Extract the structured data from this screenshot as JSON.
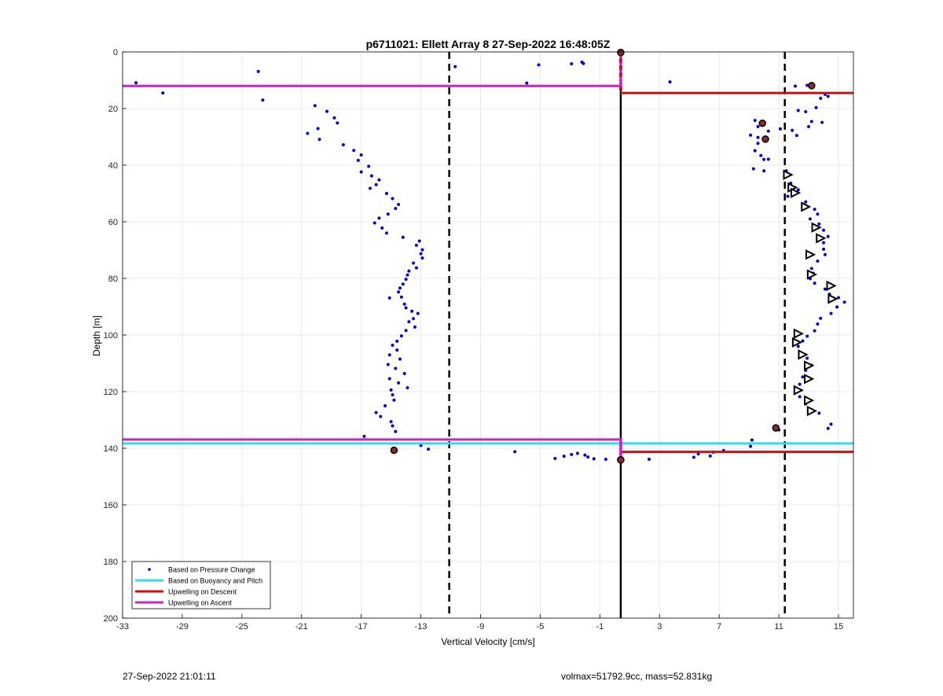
{
  "chart_data": {
    "type": "scatter",
    "title": "p6711021: Ellett Array 8 27-Sep-2022 16:48:05Z",
    "xlabel": "Vertical Velocity [cm/s]",
    "ylabel": "Depth [m]",
    "xlim": [
      -33,
      16
    ],
    "ylim": [
      0,
      200
    ],
    "y_reversed": true,
    "grid": true,
    "legend_position": "bottom-left",
    "xticks": [
      -33,
      -29,
      -25,
      -21,
      -17,
      -13,
      -9,
      -5,
      -1,
      3,
      7,
      11,
      15
    ],
    "yticks": [
      0,
      20,
      40,
      60,
      80,
      100,
      120,
      140,
      160,
      180,
      200
    ],
    "colors": {
      "pressure": "#0000cc",
      "buoyancy": "#33dde6",
      "descent": "#cc1111",
      "ascent": "#cc22cc",
      "reference": "#000000"
    },
    "legend": [
      {
        "label": "Based on Pressure Change",
        "style": "dot",
        "color": "#0000cc"
      },
      {
        "label": "Based on Buoyancy and Pitch",
        "style": "line",
        "color": "#33dde6"
      },
      {
        "label": "Upwelling on Descent",
        "style": "line",
        "color": "#cc1111"
      },
      {
        "label": "Upwelling on Ascent",
        "style": "line",
        "color": "#cc22cc"
      }
    ],
    "vertical_lines": [
      {
        "x": -11.1,
        "style": "dashed"
      },
      {
        "x": 0.4,
        "style": "solid"
      },
      {
        "x": 11.4,
        "style": "dashed"
      }
    ],
    "upwelling_ascent": [
      {
        "depth": 12.0,
        "x_from": -33,
        "x_to": 0.4
      },
      {
        "depth": 136.9,
        "x_from": -33,
        "x_to": 0.4
      }
    ],
    "upwelling_descent": [
      {
        "depth": 14.5,
        "x_from": 0.4,
        "x_to": 16
      },
      {
        "depth": 141.3,
        "x_from": 0.4,
        "x_to": 16
      }
    ],
    "buoyancy_line": {
      "depth": 138.3,
      "x_from": -33,
      "x_to": 16
    },
    "pressure_points": [
      [
        -32.1,
        10.9
      ],
      [
        -30.3,
        14.5
      ],
      [
        -23.9,
        6.9
      ],
      [
        -23.6,
        17.0
      ],
      [
        -20.1,
        19.0
      ],
      [
        -19.3,
        21.0
      ],
      [
        -18.8,
        23.3
      ],
      [
        -18.6,
        25.1
      ],
      [
        -19.9,
        27.1
      ],
      [
        -20.6,
        28.8
      ],
      [
        -19.8,
        30.9
      ],
      [
        -18.2,
        32.8
      ],
      [
        -17.5,
        34.8
      ],
      [
        -17.0,
        36.4
      ],
      [
        -17.2,
        38.3
      ],
      [
        -16.5,
        40.4
      ],
      [
        -17.0,
        42.4
      ],
      [
        -16.3,
        43.8
      ],
      [
        -15.8,
        45.2
      ],
      [
        -16.0,
        46.9
      ],
      [
        -16.4,
        48.2
      ],
      [
        -15.3,
        50.0
      ],
      [
        -14.9,
        51.8
      ],
      [
        -14.5,
        53.9
      ],
      [
        -14.7,
        55.3
      ],
      [
        -15.2,
        57.3
      ],
      [
        -15.8,
        58.7
      ],
      [
        -16.1,
        60.4
      ],
      [
        -15.6,
        62.2
      ],
      [
        -15.3,
        64.0
      ],
      [
        -14.2,
        65.5
      ],
      [
        -13.1,
        66.8
      ],
      [
        -13.3,
        68.3
      ],
      [
        -12.9,
        69.9
      ],
      [
        -13.0,
        71.3
      ],
      [
        -12.9,
        72.8
      ],
      [
        -13.5,
        74.6
      ],
      [
        -13.3,
        76.3
      ],
      [
        -13.8,
        77.4
      ],
      [
        -13.9,
        78.8
      ],
      [
        -14.0,
        80.3
      ],
      [
        -14.2,
        82.0
      ],
      [
        -14.4,
        83.4
      ],
      [
        -14.5,
        84.8
      ],
      [
        -15.1,
        86.9
      ],
      [
        -14.3,
        86.6
      ],
      [
        -14.1,
        89.1
      ],
      [
        -14.0,
        90.4
      ],
      [
        -13.6,
        91.6
      ],
      [
        -13.2,
        92.4
      ],
      [
        -13.5,
        94.2
      ],
      [
        -13.8,
        95.3
      ],
      [
        -13.4,
        97.2
      ],
      [
        -14.0,
        98.4
      ],
      [
        -14.3,
        100.3
      ],
      [
        -14.6,
        102.2
      ],
      [
        -14.9,
        103.6
      ],
      [
        -14.6,
        105.3
      ],
      [
        -15.1,
        107.0
      ],
      [
        -14.4,
        108.5
      ],
      [
        -15.2,
        110.4
      ],
      [
        -14.7,
        111.8
      ],
      [
        -14.1,
        113.6
      ],
      [
        -15.1,
        115.4
      ],
      [
        -14.5,
        116.9
      ],
      [
        -13.9,
        118.6
      ],
      [
        -15.0,
        119.4
      ],
      [
        -14.9,
        121.1
      ],
      [
        -14.8,
        123.0
      ],
      [
        -15.4,
        125.0
      ],
      [
        -16.0,
        127.4
      ],
      [
        -15.7,
        128.8
      ],
      [
        -15.0,
        130.6
      ],
      [
        -14.9,
        132.1
      ],
      [
        -14.7,
        134.1
      ],
      [
        -16.8,
        135.8
      ],
      [
        -13.0,
        139.0
      ],
      [
        -12.5,
        140.3
      ],
      [
        -6.7,
        141.2
      ],
      [
        -4.0,
        143.6
      ],
      [
        -3.4,
        142.8
      ],
      [
        -2.9,
        142.2
      ],
      [
        -2.5,
        141.8
      ],
      [
        -2.0,
        142.4
      ],
      [
        -1.8,
        143.1
      ],
      [
        -1.4,
        143.7
      ],
      [
        -0.6,
        143.9
      ],
      [
        2.3,
        143.9
      ],
      [
        5.3,
        143.2
      ],
      [
        5.6,
        142.0
      ],
      [
        6.6,
        141.4
      ],
      [
        7.3,
        140.8
      ],
      [
        6.4,
        142.7
      ],
      [
        9.2,
        137.1
      ],
      [
        9.1,
        139.3
      ],
      [
        11.0,
        133.5
      ],
      [
        14.5,
        131.5
      ],
      [
        14.3,
        133.0
      ],
      [
        -10.7,
        5.2
      ],
      [
        -5.1,
        4.6
      ],
      [
        -2.9,
        4.2
      ],
      [
        -2.2,
        3.6
      ],
      [
        -2.1,
        4.1
      ],
      [
        -5.9,
        11.0
      ],
      [
        3.7,
        10.6
      ],
      [
        12.1,
        12.1
      ],
      [
        12.9,
        11.8
      ],
      [
        14.1,
        15.0
      ],
      [
        13.8,
        16.4
      ],
      [
        14.3,
        15.7
      ],
      [
        13.5,
        19.7
      ],
      [
        12.8,
        21.1
      ],
      [
        12.3,
        20.7
      ],
      [
        13.2,
        24.6
      ],
      [
        13.9,
        24.9
      ],
      [
        13.0,
        26.4
      ],
      [
        11.1,
        27.2
      ],
      [
        11.9,
        27.7
      ],
      [
        12.2,
        29.5
      ],
      [
        10.3,
        28.0
      ],
      [
        9.1,
        29.4
      ],
      [
        9.4,
        24.2
      ],
      [
        9.6,
        26.4
      ],
      [
        9.6,
        30.2
      ],
      [
        9.6,
        32.3
      ],
      [
        9.4,
        34.9
      ],
      [
        9.8,
        36.6
      ],
      [
        10.0,
        38.0
      ],
      [
        9.3,
        41.3
      ],
      [
        10.0,
        42.0
      ],
      [
        10.3,
        37.9
      ],
      [
        11.5,
        42.0
      ],
      [
        11.8,
        46.4
      ],
      [
        12.3,
        48.7
      ],
      [
        11.6,
        51.0
      ],
      [
        12.8,
        53.0
      ],
      [
        13.4,
        55.6
      ],
      [
        13.6,
        57.3
      ],
      [
        13.1,
        59.0
      ],
      [
        13.7,
        60.8
      ],
      [
        14.0,
        63.0
      ],
      [
        14.3,
        65.2
      ],
      [
        14.0,
        67.4
      ],
      [
        14.0,
        69.7
      ],
      [
        14.1,
        71.6
      ],
      [
        13.6,
        73.9
      ],
      [
        13.2,
        76.5
      ],
      [
        13.3,
        78.2
      ],
      [
        13.1,
        80.1
      ],
      [
        13.4,
        81.7
      ],
      [
        14.1,
        83.8
      ],
      [
        14.4,
        85.6
      ],
      [
        15.0,
        86.8
      ],
      [
        15.4,
        88.4
      ],
      [
        14.9,
        90.1
      ],
      [
        14.5,
        92.4
      ],
      [
        13.8,
        94.1
      ],
      [
        13.6,
        96.1
      ],
      [
        13.4,
        98.5
      ],
      [
        12.9,
        100.4
      ],
      [
        12.6,
        102.1
      ],
      [
        12.3,
        104.0
      ],
      [
        12.4,
        106.3
      ],
      [
        12.9,
        108.2
      ],
      [
        13.2,
        110.7
      ],
      [
        12.8,
        112.5
      ],
      [
        12.6,
        114.8
      ],
      [
        12.4,
        117.4
      ],
      [
        12.1,
        119.9
      ],
      [
        12.4,
        121.8
      ],
      [
        12.8,
        124.3
      ],
      [
        13.2,
        126.4
      ],
      [
        13.7,
        127.6
      ]
    ],
    "ascent_points": [
      [
        0.4,
        0.4
      ],
      [
        0.4,
        1.2
      ],
      [
        0.4,
        2.5
      ],
      [
        0.4,
        3.8
      ],
      [
        0.4,
        5.0
      ],
      [
        0.4,
        6.2
      ],
      [
        0.4,
        7.5
      ],
      [
        0.4,
        8.8
      ],
      [
        0.4,
        10.0
      ],
      [
        0.4,
        11.2
      ],
      [
        0.4,
        12.3
      ],
      [
        0.4,
        137.0
      ],
      [
        0.4,
        138.0
      ],
      [
        0.4,
        139.0
      ],
      [
        0.4,
        140.0
      ],
      [
        0.4,
        141.0
      ],
      [
        0.4,
        142.0
      ],
      [
        0.4,
        143.0
      ],
      [
        0.4,
        144.0
      ]
    ],
    "descent_markers": [
      [
        0.4,
        3.0
      ],
      [
        0.4,
        5.5
      ],
      [
        0.4,
        8.0
      ],
      [
        0.4,
        13.0
      ]
    ],
    "circle_markers": [
      [
        0.4,
        0.2
      ],
      [
        13.2,
        11.9
      ],
      [
        9.9,
        25.2
      ],
      [
        10.1,
        30.8
      ],
      [
        10.8,
        132.8
      ],
      [
        -14.8,
        140.7
      ],
      [
        0.4,
        144.1
      ]
    ],
    "triangle_markers": [
      [
        11.6,
        43.4
      ],
      [
        11.9,
        47.9
      ],
      [
        12.1,
        49.8
      ],
      [
        12.8,
        54.7
      ],
      [
        13.5,
        62.0
      ],
      [
        13.8,
        65.8
      ],
      [
        13.1,
        71.6
      ],
      [
        13.2,
        78.6
      ],
      [
        14.5,
        82.6
      ],
      [
        14.6,
        87.2
      ],
      [
        12.3,
        99.5
      ],
      [
        12.2,
        102.6
      ],
      [
        12.6,
        106.9
      ],
      [
        13.0,
        110.8
      ],
      [
        13.0,
        115.5
      ],
      [
        12.3,
        119.5
      ],
      [
        13.0,
        123.1
      ],
      [
        13.2,
        126.8
      ]
    ]
  },
  "footer": {
    "timestamp": "27-Sep-2022 21:01:11",
    "info": "volmax=51792.9cc, mass=52.831kg"
  }
}
